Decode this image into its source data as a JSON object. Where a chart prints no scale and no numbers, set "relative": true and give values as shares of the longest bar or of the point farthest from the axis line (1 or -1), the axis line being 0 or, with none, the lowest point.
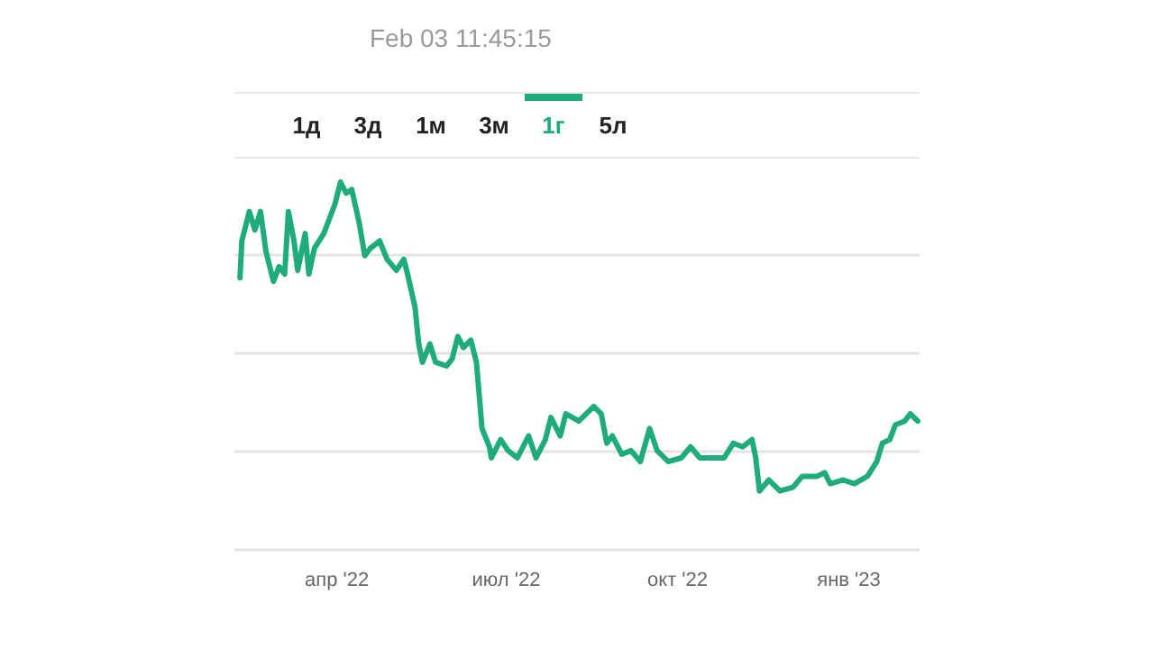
{
  "chart_data": {
    "type": "line",
    "relative": true,
    "grid": "y",
    "annotations": [
      "Feb 03 11:45:15",
      "1д",
      "3д",
      "1м",
      "3м",
      "1г",
      "5л"
    ],
    "xlim": [
      "2022-02-05",
      "2023-02-08"
    ],
    "xticks": [
      {
        "value": "2022-04-01",
        "label": "апр '22"
      },
      {
        "value": "2022-07-01",
        "label": "июл '22"
      },
      {
        "value": "2022-10-01",
        "label": "окт '22"
      },
      {
        "value": "2023-01-01",
        "label": "янв '23"
      }
    ],
    "x": [
      "2022-02-08",
      "2022-02-09",
      "2022-02-13",
      "2022-02-16",
      "2022-02-19",
      "2022-02-22",
      "2022-02-26",
      "2022-03-01",
      "2022-03-04",
      "2022-03-06",
      "2022-03-09",
      "2022-03-11",
      "2022-03-15",
      "2022-03-17",
      "2022-03-20",
      "2022-03-25",
      "2022-03-28",
      "2022-03-31",
      "2022-04-03",
      "2022-04-06",
      "2022-04-09",
      "2022-04-13",
      "2022-04-16",
      "2022-04-19",
      "2022-04-24",
      "2022-04-28",
      "2022-05-03",
      "2022-05-07",
      "2022-05-09",
      "2022-05-13",
      "2022-05-15",
      "2022-05-17",
      "2022-05-21",
      "2022-05-24",
      "2022-05-30",
      "2022-06-02",
      "2022-06-05",
      "2022-06-08",
      "2022-06-12",
      "2022-06-15",
      "2022-06-18",
      "2022-06-22",
      "2022-06-23",
      "2022-06-28",
      "2022-07-02",
      "2022-07-07",
      "2022-07-13",
      "2022-07-17",
      "2022-07-22",
      "2022-07-25",
      "2022-07-30",
      "2022-08-02",
      "2022-08-09",
      "2022-08-17",
      "2022-08-21",
      "2022-08-24",
      "2022-08-27",
      "2022-09-01",
      "2022-09-06",
      "2022-09-11",
      "2022-09-16",
      "2022-09-20",
      "2022-09-26",
      "2022-10-03",
      "2022-10-08",
      "2022-10-13",
      "2022-10-20",
      "2022-10-26",
      "2022-10-31",
      "2022-11-05",
      "2022-11-10",
      "2022-11-12",
      "2022-11-14",
      "2022-11-19",
      "2022-11-25",
      "2022-12-02",
      "2022-12-07",
      "2022-12-15",
      "2022-12-19",
      "2022-12-22",
      "2022-12-29",
      "2023-01-04",
      "2023-01-11",
      "2023-01-16",
      "2023-01-19",
      "2023-01-23",
      "2023-01-26",
      "2023-01-31",
      "2023-02-03",
      "2023-02-07"
    ],
    "series": [
      {
        "color": "#1fab7c",
        "values": [
          0.74,
          0.84,
          0.92,
          0.87,
          0.92,
          0.81,
          0.73,
          0.77,
          0.75,
          0.92,
          0.84,
          0.76,
          0.86,
          0.75,
          0.82,
          0.86,
          0.9,
          0.94,
          1,
          0.97,
          0.98,
          0.89,
          0.8,
          0.82,
          0.84,
          0.79,
          0.76,
          0.79,
          0.75,
          0.66,
          0.56,
          0.51,
          0.56,
          0.51,
          0.5,
          0.52,
          0.58,
          0.55,
          0.57,
          0.51,
          0.33,
          0.28,
          0.25,
          0.3,
          0.27,
          0.25,
          0.31,
          0.25,
          0.3,
          0.36,
          0.31,
          0.37,
          0.35,
          0.39,
          0.37,
          0.29,
          0.31,
          0.26,
          0.27,
          0.24,
          0.33,
          0.27,
          0.24,
          0.25,
          0.28,
          0.25,
          0.25,
          0.25,
          0.29,
          0.28,
          0.3,
          0.25,
          0.16,
          0.19,
          0.16,
          0.17,
          0.2,
          0.2,
          0.21,
          0.18,
          0.19,
          0.18,
          0.2,
          0.24,
          0.29,
          0.3,
          0.34,
          0.35,
          0.37,
          0.35
        ]
      }
    ]
  }
}
